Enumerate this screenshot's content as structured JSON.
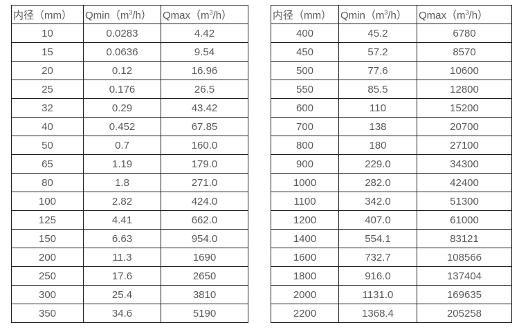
{
  "colors": {
    "text": "#595959",
    "border": "#1f1f1f",
    "background": "#ffffff"
  },
  "chart_data": [
    {
      "type": "table",
      "columns": [
        "内径（mm）",
        "Qmin（m³/h）",
        "Qmax（m³/h）"
      ],
      "rows": [
        [
          "10",
          "0.0283",
          "4.42"
        ],
        [
          "15",
          "0.0636",
          "9.54"
        ],
        [
          "20",
          "0.12",
          "16.96"
        ],
        [
          "25",
          "0.176",
          "26.5"
        ],
        [
          "32",
          "0.29",
          "43.42"
        ],
        [
          "40",
          "0.452",
          "67.85"
        ],
        [
          "50",
          "0.7",
          "160.0"
        ],
        [
          "65",
          "1.19",
          "179.0"
        ],
        [
          "80",
          "1.8",
          "271.0"
        ],
        [
          "100",
          "2.82",
          "424.0"
        ],
        [
          "125",
          "4.41",
          "662.0"
        ],
        [
          "150",
          "6.63",
          "954.0"
        ],
        [
          "200",
          "11.3",
          "1690"
        ],
        [
          "250",
          "17.6",
          "2650"
        ],
        [
          "300",
          "25.4",
          "3810"
        ],
        [
          "350",
          "34.6",
          "5190"
        ]
      ]
    },
    {
      "type": "table",
      "columns": [
        "内径（mm）",
        "Qmin（m³/h）",
        "Qmax（m³/h）"
      ],
      "rows": [
        [
          "400",
          "45.2",
          "6780"
        ],
        [
          "450",
          "57.2",
          "8570"
        ],
        [
          "500",
          "77.6",
          "10600"
        ],
        [
          "550",
          "85.5",
          "12800"
        ],
        [
          "600",
          "110",
          "15200"
        ],
        [
          "700",
          "138",
          "20700"
        ],
        [
          "800",
          "180",
          "27100"
        ],
        [
          "900",
          "229.0",
          "34300"
        ],
        [
          "1000",
          "282.0",
          "42400"
        ],
        [
          "1100",
          "342.0",
          "51300"
        ],
        [
          "1200",
          "407.0",
          "61000"
        ],
        [
          "1400",
          "554.1",
          "83121"
        ],
        [
          "1600",
          "732.7",
          "108566"
        ],
        [
          "1800",
          "916.0",
          "137404"
        ],
        [
          "2000",
          "1131.0",
          "169635"
        ],
        [
          "2200",
          "1368.4",
          "205258"
        ]
      ]
    }
  ]
}
